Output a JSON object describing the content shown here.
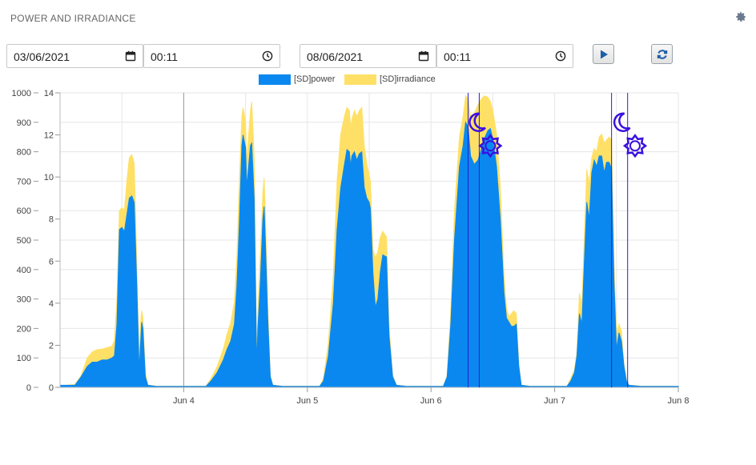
{
  "header": {
    "title": "POWER AND IRRADIANCE",
    "settings_icon": "gear-icon"
  },
  "controls": {
    "start_date": "03/06/2021",
    "start_time": "00:11",
    "end_date": "08/06/2021",
    "end_time": "00:11",
    "play_icon": "play-icon",
    "refresh_icon": "refresh-icon"
  },
  "colors": {
    "power": "#0a88f0",
    "irradiance": "#ffe066",
    "marker_line": "#2a1fd0",
    "marker_icon": "#3a10e0",
    "grid": "#e6e6e6"
  },
  "chart_data": {
    "type": "area",
    "series": [
      {
        "name": "[SD]power",
        "axis": "right",
        "points": [
          [
            3.0,
            0.1
          ],
          [
            3.12,
            0.1
          ],
          [
            3.17,
            0.5
          ],
          [
            3.22,
            1.0
          ],
          [
            3.26,
            1.2
          ],
          [
            3.3,
            1.2
          ],
          [
            3.34,
            1.3
          ],
          [
            3.38,
            1.3
          ],
          [
            3.42,
            1.4
          ],
          [
            3.44,
            1.5
          ],
          [
            3.46,
            3.0
          ],
          [
            3.48,
            7.5
          ],
          [
            3.5,
            7.6
          ],
          [
            3.52,
            7.4
          ],
          [
            3.54,
            8.2
          ],
          [
            3.56,
            9.0
          ],
          [
            3.58,
            9.1
          ],
          [
            3.6,
            8.8
          ],
          [
            3.62,
            5.0
          ],
          [
            3.64,
            0.8
          ],
          [
            3.65,
            2.0
          ],
          [
            3.66,
            3.1
          ],
          [
            3.67,
            2.8
          ],
          [
            3.69,
            0.5
          ],
          [
            3.71,
            0.1
          ],
          [
            3.78,
            0.05
          ],
          [
            4.0,
            0.05
          ],
          [
            4.18,
            0.05
          ],
          [
            4.22,
            0.3
          ],
          [
            4.27,
            0.7
          ],
          [
            4.32,
            1.3
          ],
          [
            4.35,
            1.8
          ],
          [
            4.38,
            2.2
          ],
          [
            4.41,
            3.0
          ],
          [
            4.43,
            4.8
          ],
          [
            4.45,
            7.8
          ],
          [
            4.47,
            11.5
          ],
          [
            4.48,
            12.0
          ],
          [
            4.5,
            11.4
          ],
          [
            4.51,
            9.5
          ],
          [
            4.52,
            10.2
          ],
          [
            4.54,
            11.5
          ],
          [
            4.55,
            11.6
          ],
          [
            4.57,
            9.0
          ],
          [
            4.58,
            5.0
          ],
          [
            4.59,
            1.0
          ],
          [
            4.6,
            2.8
          ],
          [
            4.62,
            5.0
          ],
          [
            4.64,
            8.0
          ],
          [
            4.65,
            8.6
          ],
          [
            4.66,
            7.0
          ],
          [
            4.68,
            3.2
          ],
          [
            4.7,
            0.5
          ],
          [
            4.72,
            0.1
          ],
          [
            4.8,
            0.05
          ],
          [
            5.1,
            0.05
          ],
          [
            5.13,
            0.3
          ],
          [
            5.17,
            1.5
          ],
          [
            5.21,
            4.0
          ],
          [
            5.24,
            7.5
          ],
          [
            5.27,
            9.5
          ],
          [
            5.3,
            10.6
          ],
          [
            5.32,
            11.3
          ],
          [
            5.34,
            11.2
          ],
          [
            5.35,
            10.5
          ],
          [
            5.36,
            11.0
          ],
          [
            5.38,
            11.2
          ],
          [
            5.4,
            10.8
          ],
          [
            5.42,
            11.1
          ],
          [
            5.44,
            11.2
          ],
          [
            5.46,
            9.5
          ],
          [
            5.48,
            9.0
          ],
          [
            5.5,
            8.8
          ],
          [
            5.51,
            8.5
          ],
          [
            5.53,
            5.5
          ],
          [
            5.55,
            3.8
          ],
          [
            5.57,
            4.2
          ],
          [
            5.59,
            5.5
          ],
          [
            5.61,
            6.3
          ],
          [
            5.64,
            6.2
          ],
          [
            5.66,
            2.5
          ],
          [
            5.69,
            0.5
          ],
          [
            5.72,
            0.1
          ],
          [
            5.8,
            0.05
          ],
          [
            6.1,
            0.05
          ],
          [
            6.13,
            0.5
          ],
          [
            6.16,
            3.0
          ],
          [
            6.19,
            7.0
          ],
          [
            6.23,
            10.5
          ],
          [
            6.26,
            11.5
          ],
          [
            6.28,
            12.6
          ],
          [
            6.3,
            12.4
          ],
          [
            6.32,
            11.0
          ],
          [
            6.35,
            10.6
          ],
          [
            6.38,
            10.8
          ],
          [
            6.4,
            11.2
          ],
          [
            6.43,
            11.8
          ],
          [
            6.46,
            12.2
          ],
          [
            6.48,
            12.3
          ],
          [
            6.5,
            11.8
          ],
          [
            6.53,
            10.5
          ],
          [
            6.56,
            8.0
          ],
          [
            6.59,
            4.5
          ],
          [
            6.61,
            3.3
          ],
          [
            6.63,
            3.1
          ],
          [
            6.65,
            2.9
          ],
          [
            6.67,
            2.9
          ],
          [
            6.69,
            3.0
          ],
          [
            6.71,
            1.0
          ],
          [
            6.73,
            0.1
          ],
          [
            6.8,
            0.05
          ],
          [
            7.1,
            0.05
          ],
          [
            7.13,
            0.3
          ],
          [
            7.16,
            0.7
          ],
          [
            7.18,
            1.5
          ],
          [
            7.2,
            3.5
          ],
          [
            7.22,
            3.0
          ],
          [
            7.24,
            6.0
          ],
          [
            7.26,
            8.8
          ],
          [
            7.28,
            8.0
          ],
          [
            7.3,
            10.2
          ],
          [
            7.32,
            10.8
          ],
          [
            7.34,
            10.5
          ],
          [
            7.36,
            11.0
          ],
          [
            7.38,
            11.0
          ],
          [
            7.4,
            10.2
          ],
          [
            7.42,
            10.7
          ],
          [
            7.44,
            10.7
          ],
          [
            7.46,
            10.4
          ],
          [
            7.48,
            5.0
          ],
          [
            7.5,
            1.8
          ],
          [
            7.52,
            2.6
          ],
          [
            7.54,
            2.2
          ],
          [
            7.56,
            1.0
          ],
          [
            7.58,
            0.3
          ],
          [
            7.6,
            0.1
          ],
          [
            7.7,
            0.05
          ],
          [
            8.0,
            0.05
          ]
        ]
      },
      {
        "name": "[SD]irradiance",
        "axis": "left",
        "points": [
          [
            3.0,
            5
          ],
          [
            3.12,
            10
          ],
          [
            3.17,
            40
          ],
          [
            3.22,
            100
          ],
          [
            3.26,
            120
          ],
          [
            3.3,
            128
          ],
          [
            3.34,
            130
          ],
          [
            3.38,
            135
          ],
          [
            3.42,
            140
          ],
          [
            3.44,
            160
          ],
          [
            3.46,
            300
          ],
          [
            3.48,
            600
          ],
          [
            3.5,
            610
          ],
          [
            3.52,
            600
          ],
          [
            3.54,
            700
          ],
          [
            3.56,
            780
          ],
          [
            3.58,
            790
          ],
          [
            3.6,
            760
          ],
          [
            3.62,
            430
          ],
          [
            3.64,
            90
          ],
          [
            3.65,
            210
          ],
          [
            3.66,
            260
          ],
          [
            3.67,
            240
          ],
          [
            3.69,
            50
          ],
          [
            3.71,
            8
          ],
          [
            3.78,
            4
          ],
          [
            4.0,
            4
          ],
          [
            4.18,
            4
          ],
          [
            4.22,
            30
          ],
          [
            4.27,
            70
          ],
          [
            4.32,
            130
          ],
          [
            4.35,
            180
          ],
          [
            4.38,
            220
          ],
          [
            4.41,
            290
          ],
          [
            4.43,
            440
          ],
          [
            4.45,
            700
          ],
          [
            4.47,
            920
          ],
          [
            4.48,
            950
          ],
          [
            4.5,
            900
          ],
          [
            4.51,
            760
          ],
          [
            4.52,
            830
          ],
          [
            4.54,
            940
          ],
          [
            4.55,
            970
          ],
          [
            4.57,
            780
          ],
          [
            4.58,
            420
          ],
          [
            4.59,
            90
          ],
          [
            4.6,
            260
          ],
          [
            4.62,
            450
          ],
          [
            4.64,
            660
          ],
          [
            4.65,
            710
          ],
          [
            4.66,
            600
          ],
          [
            4.68,
            280
          ],
          [
            4.7,
            40
          ],
          [
            4.72,
            8
          ],
          [
            4.8,
            4
          ],
          [
            5.1,
            4
          ],
          [
            5.13,
            30
          ],
          [
            5.17,
            150
          ],
          [
            5.21,
            380
          ],
          [
            5.24,
            700
          ],
          [
            5.27,
            860
          ],
          [
            5.3,
            920
          ],
          [
            5.32,
            950
          ],
          [
            5.34,
            940
          ],
          [
            5.35,
            880
          ],
          [
            5.36,
            910
          ],
          [
            5.38,
            940
          ],
          [
            5.4,
            920
          ],
          [
            5.42,
            940
          ],
          [
            5.44,
            950
          ],
          [
            5.46,
            820
          ],
          [
            5.48,
            760
          ],
          [
            5.5,
            720
          ],
          [
            5.51,
            700
          ],
          [
            5.53,
            470
          ],
          [
            5.55,
            440
          ],
          [
            5.57,
            460
          ],
          [
            5.59,
            510
          ],
          [
            5.61,
            530
          ],
          [
            5.64,
            510
          ],
          [
            5.66,
            210
          ],
          [
            5.69,
            40
          ],
          [
            5.72,
            8
          ],
          [
            5.8,
            4
          ],
          [
            6.1,
            4
          ],
          [
            6.13,
            40
          ],
          [
            6.16,
            260
          ],
          [
            6.19,
            600
          ],
          [
            6.23,
            850
          ],
          [
            6.26,
            920
          ],
          [
            6.28,
            990
          ],
          [
            6.3,
            980
          ],
          [
            6.32,
            920
          ],
          [
            6.35,
            930
          ],
          [
            6.38,
            960
          ],
          [
            6.4,
            975
          ],
          [
            6.43,
            990
          ],
          [
            6.46,
            985
          ],
          [
            6.48,
            970
          ],
          [
            6.5,
            940
          ],
          [
            6.53,
            860
          ],
          [
            6.56,
            680
          ],
          [
            6.59,
            380
          ],
          [
            6.61,
            270
          ],
          [
            6.63,
            240
          ],
          [
            6.65,
            250
          ],
          [
            6.67,
            260
          ],
          [
            6.69,
            250
          ],
          [
            6.71,
            80
          ],
          [
            6.73,
            8
          ],
          [
            6.8,
            4
          ],
          [
            7.1,
            4
          ],
          [
            7.13,
            30
          ],
          [
            7.16,
            60
          ],
          [
            7.18,
            120
          ],
          [
            7.2,
            320
          ],
          [
            7.22,
            280
          ],
          [
            7.24,
            520
          ],
          [
            7.26,
            740
          ],
          [
            7.28,
            690
          ],
          [
            7.3,
            780
          ],
          [
            7.32,
            810
          ],
          [
            7.34,
            800
          ],
          [
            7.36,
            850
          ],
          [
            7.38,
            860
          ],
          [
            7.4,
            830
          ],
          [
            7.42,
            840
          ],
          [
            7.44,
            850
          ],
          [
            7.46,
            840
          ],
          [
            7.48,
            420
          ],
          [
            7.5,
            180
          ],
          [
            7.52,
            215
          ],
          [
            7.54,
            190
          ],
          [
            7.56,
            80
          ],
          [
            7.58,
            25
          ],
          [
            7.6,
            8
          ],
          [
            7.7,
            4
          ],
          [
            8.0,
            4
          ]
        ]
      }
    ],
    "x_ticks": [
      {
        "x": 4,
        "label": "Jun 4"
      },
      {
        "x": 5,
        "label": "Jun 5"
      },
      {
        "x": 6,
        "label": "Jun 6"
      },
      {
        "x": 7,
        "label": "Jun 7"
      },
      {
        "x": 8,
        "label": "Jun 8"
      }
    ],
    "xlim": [
      3.0,
      8.0
    ],
    "y_left": {
      "min": 0,
      "max": 1000,
      "ticks": [
        "0",
        "100",
        "200",
        "300",
        "400",
        "500",
        "600",
        "700",
        "800",
        "900",
        "1000"
      ]
    },
    "y_right": {
      "min": 0,
      "max": 14,
      "ticks": [
        "0",
        "2",
        "4",
        "6",
        "8",
        "10",
        "12",
        "14"
      ]
    },
    "event_lines": [
      6.3,
      6.39,
      7.46,
      7.59
    ],
    "markers": [
      {
        "type": "moon",
        "x": 6.38,
        "at": 0.9
      },
      {
        "type": "sun",
        "x": 6.48,
        "at": 0.82
      },
      {
        "type": "moon",
        "x": 7.55,
        "at": 0.9
      },
      {
        "type": "sun",
        "x": 7.65,
        "at": 0.82
      }
    ],
    "legend_position": "top-center",
    "grid": true
  }
}
